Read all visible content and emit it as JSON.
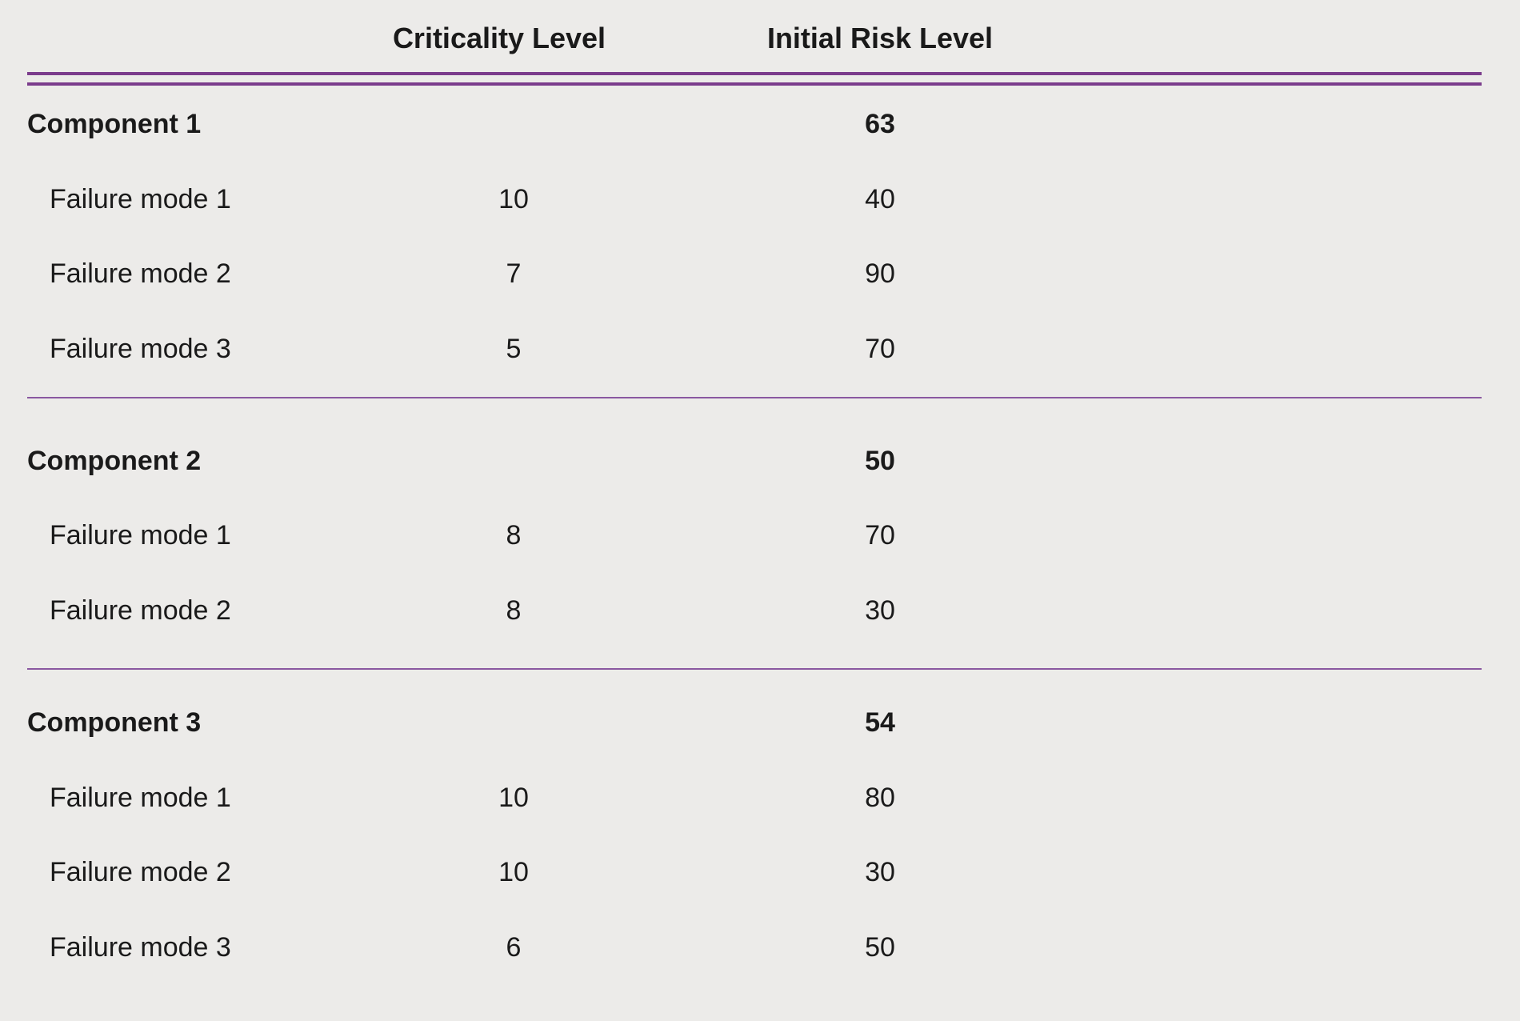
{
  "table": {
    "headers": {
      "name": "",
      "criticality": "Criticality Level",
      "risk": "Initial Risk Level"
    },
    "components": [
      {
        "name": "Component 1",
        "risk": "63",
        "failure_modes": [
          {
            "name": "Failure mode 1",
            "criticality": "10",
            "risk": "40"
          },
          {
            "name": "Failure mode 2",
            "criticality": "7",
            "risk": "90"
          },
          {
            "name": "Failure mode 3",
            "criticality": "5",
            "risk": "70"
          }
        ]
      },
      {
        "name": "Component 2",
        "risk": "50",
        "failure_modes": [
          {
            "name": "Failure mode 1",
            "criticality": "8",
            "risk": "70"
          },
          {
            "name": "Failure mode 2",
            "criticality": "8",
            "risk": "30"
          }
        ]
      },
      {
        "name": "Component 3",
        "risk": "54",
        "failure_modes": [
          {
            "name": "Failure mode 1",
            "criticality": "10",
            "risk": "80"
          },
          {
            "name": "Failure mode 2",
            "criticality": "10",
            "risk": "30"
          },
          {
            "name": "Failure mode 3",
            "criticality": "6",
            "risk": "50"
          }
        ]
      }
    ]
  },
  "colors": {
    "background": "#ECEBE9",
    "rule": "#7B3C8C",
    "text": "#1a1a1a"
  }
}
